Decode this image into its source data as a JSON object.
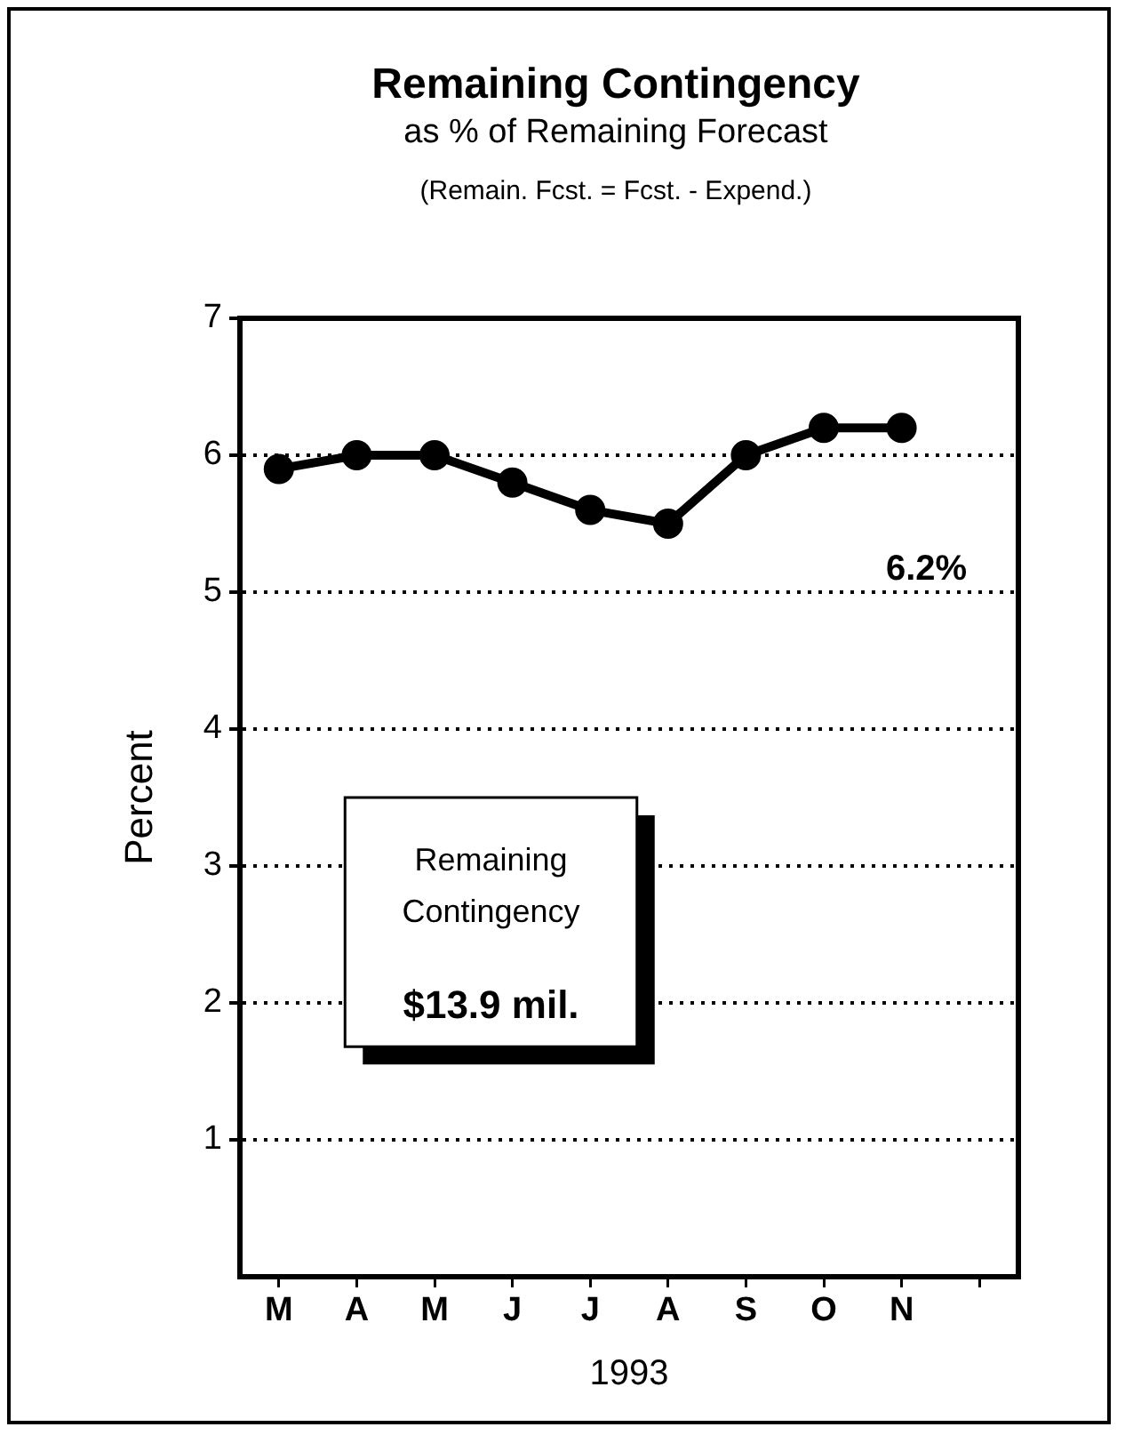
{
  "chart_data": {
    "type": "line",
    "title": "Remaining Contingency",
    "subtitle": "as % of Remaining Forecast",
    "annotations": [
      "(Remain. Fcst. = Fcst. - Expend.)",
      "Remaining Contingency",
      "$13.9 mil."
    ],
    "xlabel": "1993",
    "ylabel": "Percent",
    "categories": [
      "M",
      "A",
      "M",
      "J",
      "J",
      "A",
      "S",
      "O",
      "N",
      null
    ],
    "series": [
      {
        "color": "#000000",
        "values": [
          5.9,
          6.0,
          6.0,
          5.8,
          5.6,
          5.5,
          6.0,
          6.2,
          6.2,
          null
        ],
        "value_labels": [
          null,
          null,
          null,
          null,
          null,
          null,
          null,
          null,
          "6.2%",
          null
        ]
      }
    ],
    "ylim": [
      0,
      7
    ],
    "yticks": [
      1,
      2,
      3,
      4,
      5,
      6,
      7
    ],
    "grid": "y",
    "legend": false,
    "marker": "circle",
    "line_style": "solid"
  }
}
